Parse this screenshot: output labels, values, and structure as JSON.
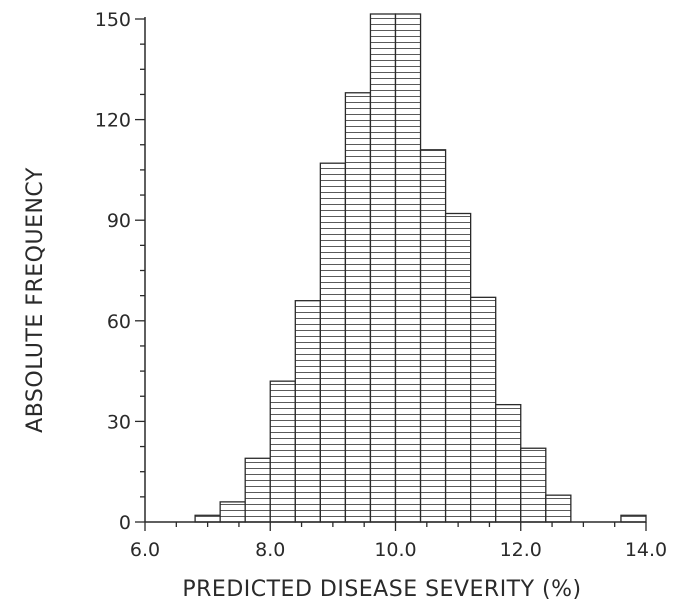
{
  "chart_data": {
    "type": "bar",
    "title": "",
    "xlabel": "PREDICTED DISEASE SEVERITY (%)",
    "ylabel": "ABSOLUTE FREQUENCY",
    "xlim": [
      6.0,
      14.0
    ],
    "ylim": [
      0,
      150
    ],
    "xticks": [
      "6.0",
      "8.0",
      "10.0",
      "12.0",
      "14.0"
    ],
    "yticks": [
      "0",
      "30",
      "60",
      "90",
      "120",
      "150"
    ],
    "bin_width": 0.4,
    "bins": [
      {
        "x0": 6.8,
        "x1": 7.2,
        "value": 2
      },
      {
        "x0": 7.2,
        "x1": 7.6,
        "value": 6
      },
      {
        "x0": 7.6,
        "x1": 8.0,
        "value": 19
      },
      {
        "x0": 8.0,
        "x1": 8.4,
        "value": 42
      },
      {
        "x0": 8.4,
        "x1": 8.8,
        "value": 66
      },
      {
        "x0": 8.8,
        "x1": 9.2,
        "value": 107
      },
      {
        "x0": 9.2,
        "x1": 9.6,
        "value": 128
      },
      {
        "x0": 9.6,
        "x1": 10.0,
        "value": 153
      },
      {
        "x0": 10.0,
        "x1": 10.4,
        "value": 152
      },
      {
        "x0": 10.4,
        "x1": 10.8,
        "value": 111
      },
      {
        "x0": 10.8,
        "x1": 11.2,
        "value": 92
      },
      {
        "x0": 11.2,
        "x1": 11.6,
        "value": 67
      },
      {
        "x0": 11.6,
        "x1": 12.0,
        "value": 35
      },
      {
        "x0": 12.0,
        "x1": 12.4,
        "value": 22
      },
      {
        "x0": 12.4,
        "x1": 12.8,
        "value": 8
      },
      {
        "x0": 13.6,
        "x1": 14.0,
        "value": 2
      }
    ],
    "grid": false,
    "legend": "none"
  },
  "colors": {
    "ink": "#2a2a2a",
    "bar_fill": "#ffffff",
    "hatch": "#555555"
  }
}
